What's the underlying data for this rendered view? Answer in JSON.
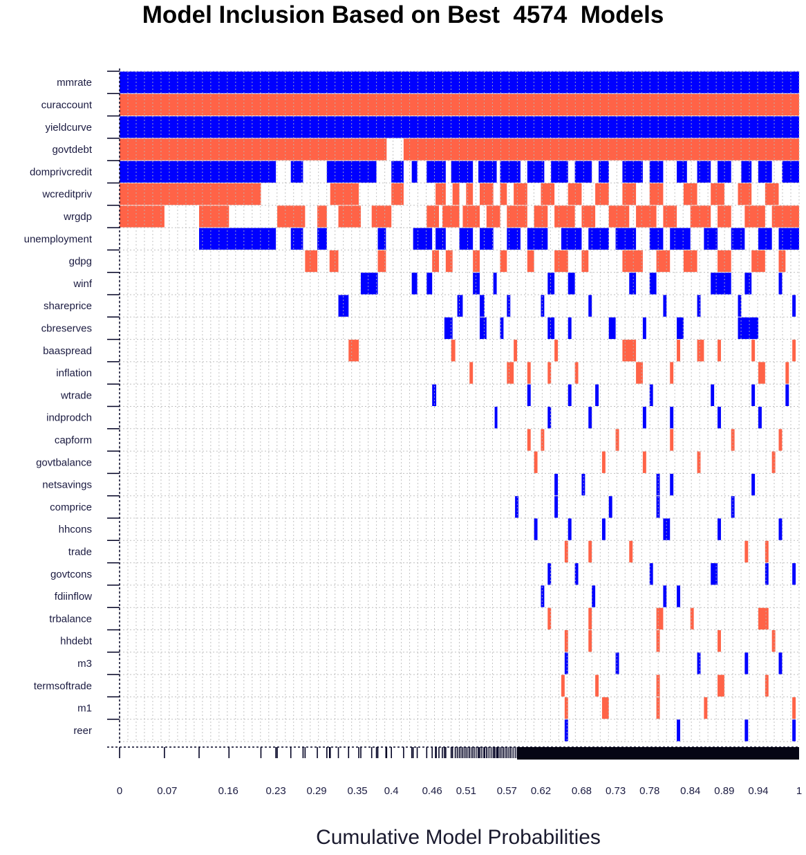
{
  "chart_data": {
    "type": "heatmap",
    "title": "Model Inclusion Based on Best  4574  Models",
    "xlabel": "Cumulative Model Probabilities",
    "ylabel": "",
    "xlim": [
      0,
      1
    ],
    "x_tick_labels": [
      "0",
      "0.07",
      "0.16",
      "0.23",
      "0.29",
      "0.35",
      "0.4",
      "0.46",
      "0.51",
      "0.57",
      "0.62",
      "0.68",
      "0.73",
      "0.78",
      "0.84",
      "0.89",
      "0.94",
      "1"
    ],
    "x_tick_values": [
      0,
      0.07,
      0.16,
      0.23,
      0.29,
      0.35,
      0.4,
      0.46,
      0.51,
      0.57,
      0.62,
      0.68,
      0.73,
      0.78,
      0.84,
      0.89,
      0.94,
      1
    ],
    "legend": "none",
    "grid": true,
    "colors": {
      "positive": "#0000ff",
      "negative": "#ff6347",
      "grid": "#b8b8b8",
      "axis": "#000022"
    },
    "variables": [
      {
        "name": "mmrate",
        "sign": "positive",
        "segments": [
          [
            0,
            1
          ]
        ]
      },
      {
        "name": "curaccount",
        "sign": "negative",
        "segments": [
          [
            0,
            1
          ]
        ]
      },
      {
        "name": "yieldcurve",
        "sign": "positive",
        "segments": [
          [
            0,
            1
          ]
        ]
      },
      {
        "name": "govtdebt",
        "sign": "negative",
        "segments": [
          [
            0,
            0.393
          ],
          [
            0.418,
            1
          ]
        ]
      },
      {
        "name": "domprivcredit",
        "sign": "positive",
        "segments": [
          [
            0,
            0.23
          ],
          [
            0.252,
            0.27
          ],
          [
            0.305,
            0.378
          ],
          [
            0.4,
            0.418
          ],
          [
            0.43,
            0.438
          ],
          [
            0.452,
            0.48
          ],
          [
            0.488,
            0.52
          ],
          [
            0.528,
            0.555
          ],
          [
            0.56,
            0.59
          ],
          [
            0.6,
            0.625
          ],
          [
            0.635,
            0.66
          ],
          [
            0.67,
            0.695
          ],
          [
            0.705,
            0.72
          ],
          [
            0.74,
            0.77
          ],
          [
            0.78,
            0.8
          ],
          [
            0.82,
            0.835
          ],
          [
            0.85,
            0.87
          ],
          [
            0.88,
            0.9
          ],
          [
            0.915,
            0.93
          ],
          [
            0.94,
            0.96
          ],
          [
            0.975,
            1
          ]
        ]
      },
      {
        "name": "wcreditpriv",
        "sign": "negative",
        "segments": [
          [
            0,
            0.208
          ],
          [
            0.31,
            0.352
          ],
          [
            0.4,
            0.418
          ],
          [
            0.465,
            0.48
          ],
          [
            0.49,
            0.5
          ],
          [
            0.51,
            0.52
          ],
          [
            0.53,
            0.55
          ],
          [
            0.56,
            0.57
          ],
          [
            0.58,
            0.6
          ],
          [
            0.62,
            0.64
          ],
          [
            0.66,
            0.68
          ],
          [
            0.7,
            0.72
          ],
          [
            0.74,
            0.76
          ],
          [
            0.78,
            0.8
          ],
          [
            0.83,
            0.85
          ],
          [
            0.87,
            0.89
          ],
          [
            0.91,
            0.93
          ],
          [
            0.95,
            0.97
          ]
        ]
      },
      {
        "name": "wrgdp",
        "sign": "negative",
        "segments": [
          [
            0,
            0.066
          ],
          [
            0.117,
            0.161
          ],
          [
            0.232,
            0.273
          ],
          [
            0.291,
            0.305
          ],
          [
            0.322,
            0.355
          ],
          [
            0.371,
            0.4
          ],
          [
            0.452,
            0.47
          ],
          [
            0.475,
            0.5
          ],
          [
            0.505,
            0.53
          ],
          [
            0.54,
            0.56
          ],
          [
            0.57,
            0.6
          ],
          [
            0.61,
            0.63
          ],
          [
            0.64,
            0.67
          ],
          [
            0.68,
            0.7
          ],
          [
            0.72,
            0.75
          ],
          [
            0.76,
            0.79
          ],
          [
            0.8,
            0.82
          ],
          [
            0.84,
            0.87
          ],
          [
            0.88,
            0.9
          ],
          [
            0.92,
            0.95
          ],
          [
            0.96,
            1
          ]
        ]
      },
      {
        "name": "unemployment",
        "sign": "positive",
        "segments": [
          [
            0.117,
            0.23
          ],
          [
            0.252,
            0.27
          ],
          [
            0.291,
            0.305
          ],
          [
            0.38,
            0.392
          ],
          [
            0.432,
            0.46
          ],
          [
            0.465,
            0.48
          ],
          [
            0.5,
            0.52
          ],
          [
            0.53,
            0.55
          ],
          [
            0.57,
            0.59
          ],
          [
            0.6,
            0.63
          ],
          [
            0.65,
            0.68
          ],
          [
            0.69,
            0.72
          ],
          [
            0.73,
            0.76
          ],
          [
            0.78,
            0.8
          ],
          [
            0.81,
            0.84
          ],
          [
            0.86,
            0.88
          ],
          [
            0.9,
            0.92
          ],
          [
            0.94,
            0.96
          ],
          [
            0.97,
            1
          ]
        ]
      },
      {
        "name": "gdpg",
        "sign": "negative",
        "segments": [
          [
            0.273,
            0.291
          ],
          [
            0.309,
            0.322
          ],
          [
            0.38,
            0.392
          ],
          [
            0.46,
            0.47
          ],
          [
            0.48,
            0.49
          ],
          [
            0.52,
            0.53
          ],
          [
            0.56,
            0.57
          ],
          [
            0.6,
            0.61
          ],
          [
            0.64,
            0.66
          ],
          [
            0.68,
            0.69
          ],
          [
            0.74,
            0.77
          ],
          [
            0.79,
            0.81
          ],
          [
            0.83,
            0.85
          ],
          [
            0.88,
            0.9
          ],
          [
            0.93,
            0.95
          ],
          [
            0.97,
            0.98
          ]
        ]
      },
      {
        "name": "winf",
        "sign": "positive",
        "segments": [
          [
            0.355,
            0.38
          ],
          [
            0.43,
            0.438
          ],
          [
            0.452,
            0.46
          ],
          [
            0.52,
            0.53
          ],
          [
            0.55,
            0.555
          ],
          [
            0.63,
            0.64
          ],
          [
            0.66,
            0.67
          ],
          [
            0.75,
            0.76
          ],
          [
            0.78,
            0.79
          ],
          [
            0.87,
            0.9
          ],
          [
            0.92,
            0.93
          ],
          [
            0.97,
            0.975
          ]
        ]
      },
      {
        "name": "shareprice",
        "sign": "positive",
        "segments": [
          [
            0.322,
            0.337
          ],
          [
            0.497,
            0.505
          ],
          [
            0.53,
            0.537
          ],
          [
            0.57,
            0.575
          ],
          [
            0.62,
            0.625
          ],
          [
            0.69,
            0.695
          ],
          [
            0.8,
            0.805
          ],
          [
            0.85,
            0.855
          ],
          [
            0.91,
            0.915
          ],
          [
            0.99,
            0.995
          ]
        ]
      },
      {
        "name": "cbreserves",
        "sign": "positive",
        "segments": [
          [
            0.478,
            0.49
          ],
          [
            0.53,
            0.54
          ],
          [
            0.56,
            0.565
          ],
          [
            0.63,
            0.64
          ],
          [
            0.66,
            0.665
          ],
          [
            0.72,
            0.73
          ],
          [
            0.77,
            0.775
          ],
          [
            0.82,
            0.83
          ],
          [
            0.91,
            0.94
          ]
        ]
      },
      {
        "name": "baaspread",
        "sign": "negative",
        "segments": [
          [
            0.337,
            0.352
          ],
          [
            0.488,
            0.494
          ],
          [
            0.58,
            0.585
          ],
          [
            0.64,
            0.645
          ],
          [
            0.74,
            0.76
          ],
          [
            0.82,
            0.825
          ],
          [
            0.85,
            0.86
          ],
          [
            0.88,
            0.885
          ],
          [
            0.93,
            0.935
          ],
          [
            0.99,
            0.995
          ]
        ]
      },
      {
        "name": "inflation",
        "sign": "negative",
        "segments": [
          [
            0.515,
            0.52
          ],
          [
            0.57,
            0.58
          ],
          [
            0.6,
            0.605
          ],
          [
            0.63,
            0.635
          ],
          [
            0.67,
            0.675
          ],
          [
            0.76,
            0.77
          ],
          [
            0.81,
            0.815
          ],
          [
            0.94,
            0.95
          ],
          [
            0.98,
            0.985
          ]
        ]
      },
      {
        "name": "wtrade",
        "sign": "positive",
        "segments": [
          [
            0.46,
            0.466
          ],
          [
            0.6,
            0.605
          ],
          [
            0.66,
            0.665
          ],
          [
            0.7,
            0.705
          ],
          [
            0.78,
            0.785
          ],
          [
            0.87,
            0.875
          ],
          [
            0.93,
            0.935
          ],
          [
            0.98,
            0.985
          ]
        ]
      },
      {
        "name": "indprodch",
        "sign": "positive",
        "segments": [
          [
            0.552,
            0.556
          ],
          [
            0.63,
            0.635
          ],
          [
            0.69,
            0.695
          ],
          [
            0.77,
            0.775
          ],
          [
            0.81,
            0.815
          ],
          [
            0.88,
            0.885
          ],
          [
            0.94,
            0.945
          ]
        ]
      },
      {
        "name": "capform",
        "sign": "negative",
        "segments": [
          [
            0.6,
            0.605
          ],
          [
            0.62,
            0.625
          ],
          [
            0.73,
            0.735
          ],
          [
            0.81,
            0.815
          ],
          [
            0.9,
            0.905
          ],
          [
            0.97,
            0.975
          ]
        ]
      },
      {
        "name": "govtbalance",
        "sign": "negative",
        "segments": [
          [
            0.61,
            0.615
          ],
          [
            0.71,
            0.715
          ],
          [
            0.77,
            0.775
          ],
          [
            0.85,
            0.855
          ],
          [
            0.96,
            0.965
          ]
        ]
      },
      {
        "name": "netsavings",
        "sign": "positive",
        "segments": [
          [
            0.64,
            0.645
          ],
          [
            0.68,
            0.685
          ],
          [
            0.79,
            0.795
          ],
          [
            0.81,
            0.815
          ],
          [
            0.93,
            0.935
          ]
        ]
      },
      {
        "name": "comprice",
        "sign": "positive",
        "segments": [
          [
            0.582,
            0.587
          ],
          [
            0.64,
            0.645
          ],
          [
            0.72,
            0.725
          ],
          [
            0.79,
            0.795
          ],
          [
            0.9,
            0.905
          ]
        ]
      },
      {
        "name": "hhcons",
        "sign": "positive",
        "segments": [
          [
            0.61,
            0.615
          ],
          [
            0.66,
            0.665
          ],
          [
            0.71,
            0.715
          ],
          [
            0.8,
            0.81
          ],
          [
            0.88,
            0.885
          ],
          [
            0.97,
            0.975
          ]
        ]
      },
      {
        "name": "trade",
        "sign": "negative",
        "segments": [
          [
            0.655,
            0.66
          ],
          [
            0.69,
            0.695
          ],
          [
            0.75,
            0.755
          ],
          [
            0.92,
            0.925
          ],
          [
            0.95,
            0.955
          ]
        ]
      },
      {
        "name": "govtcons",
        "sign": "positive",
        "segments": [
          [
            0.63,
            0.635
          ],
          [
            0.67,
            0.675
          ],
          [
            0.78,
            0.785
          ],
          [
            0.87,
            0.88
          ],
          [
            0.95,
            0.955
          ],
          [
            0.99,
            0.995
          ]
        ]
      },
      {
        "name": "fdiinflow",
        "sign": "positive",
        "segments": [
          [
            0.62,
            0.625
          ],
          [
            0.695,
            0.7
          ],
          [
            0.8,
            0.805
          ],
          [
            0.82,
            0.825
          ]
        ]
      },
      {
        "name": "trbalance",
        "sign": "negative",
        "segments": [
          [
            0.63,
            0.635
          ],
          [
            0.69,
            0.695
          ],
          [
            0.79,
            0.8
          ],
          [
            0.84,
            0.845
          ],
          [
            0.94,
            0.955
          ]
        ]
      },
      {
        "name": "hhdebt",
        "sign": "negative",
        "segments": [
          [
            0.655,
            0.66
          ],
          [
            0.69,
            0.695
          ],
          [
            0.79,
            0.795
          ],
          [
            0.88,
            0.885
          ],
          [
            0.96,
            0.965
          ]
        ]
      },
      {
        "name": "m3",
        "sign": "positive",
        "segments": [
          [
            0.655,
            0.66
          ],
          [
            0.73,
            0.735
          ],
          [
            0.85,
            0.855
          ],
          [
            0.92,
            0.925
          ],
          [
            0.97,
            0.975
          ]
        ]
      },
      {
        "name": "termsoftrade",
        "sign": "negative",
        "segments": [
          [
            0.65,
            0.655
          ],
          [
            0.7,
            0.705
          ],
          [
            0.79,
            0.795
          ],
          [
            0.88,
            0.89
          ],
          [
            0.95,
            0.955
          ]
        ]
      },
      {
        "name": "m1",
        "sign": "negative",
        "segments": [
          [
            0.655,
            0.66
          ],
          [
            0.71,
            0.72
          ],
          [
            0.79,
            0.795
          ],
          [
            0.86,
            0.865
          ],
          [
            0.99,
            0.995
          ]
        ]
      },
      {
        "name": "reer",
        "sign": "positive",
        "segments": [
          [
            0.655,
            0.66
          ],
          [
            0.82,
            0.825
          ],
          [
            0.92,
            0.925
          ],
          [
            0.99,
            0.995
          ]
        ]
      }
    ]
  }
}
